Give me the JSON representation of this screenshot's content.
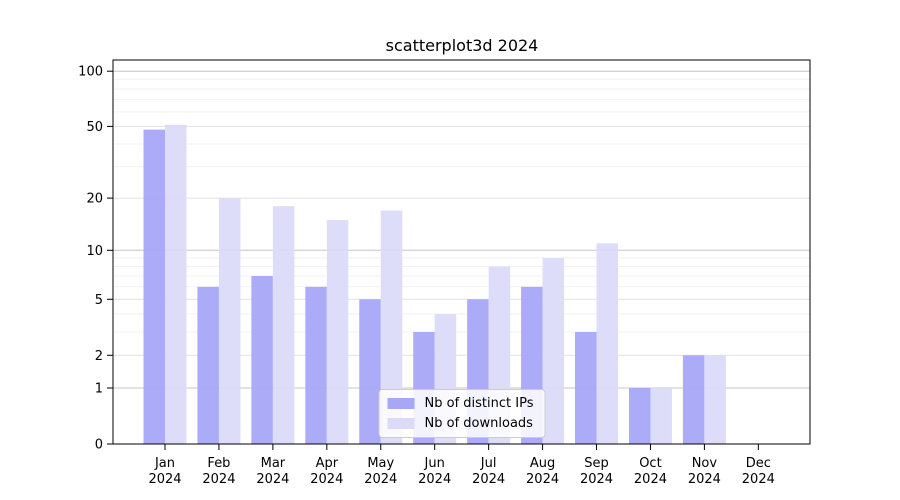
{
  "chart_data": {
    "type": "bar",
    "title": "scatterplot3d 2024",
    "categories": [
      "Jan",
      "Feb",
      "Mar",
      "Apr",
      "May",
      "Jun",
      "Jul",
      "Aug",
      "Sep",
      "Oct",
      "Nov",
      "Dec"
    ],
    "x_year": "2024",
    "series": [
      {
        "name": "Nb of distinct IPs",
        "color": "#a7a7f8",
        "values": [
          48,
          6,
          7,
          6,
          5,
          3,
          5,
          6,
          3,
          1,
          2,
          0
        ]
      },
      {
        "name": "Nb of downloads",
        "color": "#dbdbf9",
        "values": [
          51,
          20,
          18,
          15,
          17,
          4,
          8,
          9,
          11,
          1,
          2,
          0
        ]
      }
    ],
    "y_ticks": [
      0,
      1,
      2,
      5,
      10,
      20,
      50,
      100
    ],
    "y_scale": "log10(1+v)",
    "ylim": [
      0,
      115
    ],
    "grid": true,
    "legend_position": "lower center"
  }
}
